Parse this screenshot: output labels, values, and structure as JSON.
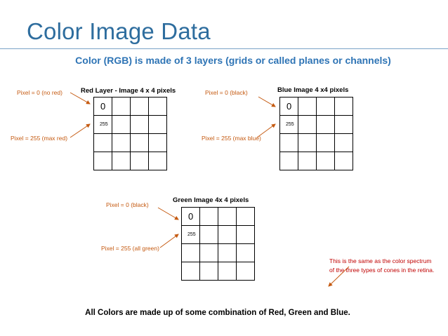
{
  "title": "Color Image Data",
  "subtitle": "Color (RGB) is made of 3 layers (grids or called planes or channels)",
  "red": {
    "title": "Red Layer - Image 4 x 4 pixels",
    "pixel_zero_label": "Pixel = 0 (no red)",
    "pixel_max_label": "Pixel = 255 (max red)",
    "cell_top_left": "0",
    "cell_second_row": "255"
  },
  "blue": {
    "title": "Blue Image 4 x4 pixels",
    "pixel_zero_label": "Pixel = 0 (black)",
    "pixel_max_label": "Pixel = 255 (max blue)",
    "cell_top_left": "0",
    "cell_second_row": "255"
  },
  "green": {
    "title": "Green  Image 4x 4 pixels",
    "pixel_zero_label": "Pixel = 0 (black)",
    "pixel_max_label": "Pixel = 255 (all green)",
    "cell_top_left": "0",
    "cell_second_row": "255"
  },
  "note": "This is the same as the color spectrum of the three types of cones in the retina.",
  "footer": "All Colors are made up of some combination of Red, Green and Blue.",
  "colors": {
    "title": "#2e6d9e",
    "subtitle": "#2e74b5",
    "labels": "#c55a11",
    "note": "#c00000"
  }
}
